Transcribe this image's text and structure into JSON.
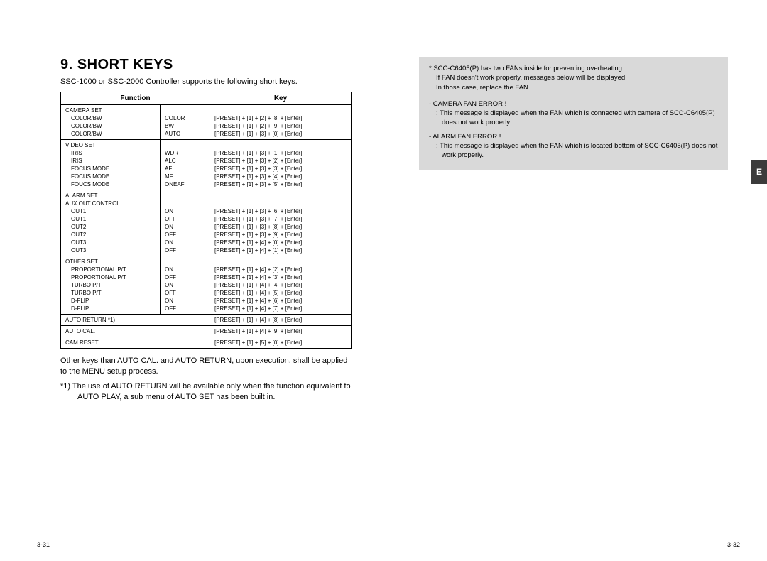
{
  "left": {
    "title": "9. SHORT KEYS",
    "intro": "SSC-1000 or SSC-2000 Controller supports the following short keys.",
    "headers": {
      "function": "Function",
      "key": "Key"
    },
    "sections": [
      {
        "label": "CAMERA SET",
        "rows": [
          {
            "name": "COLOR/BW",
            "val": "COLOR",
            "key": "[PRESET] + [1] + [2] + [8] + [Enter]"
          },
          {
            "name": "COLOR/BW",
            "val": "BW",
            "key": "[PRESET] + [1] + [2] + [9] + [Enter]"
          },
          {
            "name": "COLOR/BW",
            "val": "AUTO",
            "key": "[PRESET] + [1] + [3] + [0] + [Enter]"
          }
        ]
      },
      {
        "label": "VIDEO SET",
        "rows": [
          {
            "name": "IRIS",
            "val": "WDR",
            "key": "[PRESET] + [1] + [3] + [1] + [Enter]"
          },
          {
            "name": "IRIS",
            "val": "ALC",
            "key": "[PRESET] + [1] + [3] + [2] + [Enter]"
          },
          {
            "name": "FOCUS MODE",
            "val": "AF",
            "key": "[PRESET] + [1] + [3] + [3] + [Enter]"
          },
          {
            "name": "FOCUS MODE",
            "val": "MF",
            "key": "[PRESET] + [1] + [3] + [4] + [Enter]"
          },
          {
            "name": "FOUCS MODE",
            "val": "ONEAF",
            "key": "[PRESET] + [1] + [3] + [5] + [Enter]"
          }
        ]
      },
      {
        "label": "ALARM SET",
        "sublabel": "AUX OUT CONTROL",
        "rows": [
          {
            "name": "OUT1",
            "val": "ON",
            "key": "[PRESET] + [1] + [3] + [6] + [Enter]"
          },
          {
            "name": "OUT1",
            "val": "OFF",
            "key": "[PRESET] + [1] + [3] + [7] + [Enter]"
          },
          {
            "name": "OUT2",
            "val": "ON",
            "key": "[PRESET] + [1] + [3] + [8] + [Enter]"
          },
          {
            "name": "OUT2",
            "val": "OFF",
            "key": "[PRESET] + [1] + [3] + [9] + [Enter]"
          },
          {
            "name": "OUT3",
            "val": "ON",
            "key": "[PRESET] + [1] + [4] + [0] + [Enter]"
          },
          {
            "name": "OUT3",
            "val": "OFF",
            "key": "[PRESET] + [1] + [4] + [1] + [Enter]"
          }
        ]
      },
      {
        "label": "OTHER SET",
        "rows": [
          {
            "name": "PROPORTIONAL P/T",
            "val": "ON",
            "key": "[PRESET] + [1] + [4] + [2] + [Enter]"
          },
          {
            "name": "PROPORTIONAL P/T",
            "val": "OFF",
            "key": "[PRESET] + [1] + [4] + [3] + [Enter]"
          },
          {
            "name": "TURBO P/T",
            "val": "ON",
            "key": "[PRESET] + [1] + [4] + [4] + [Enter]"
          },
          {
            "name": "TURBO P/T",
            "val": "OFF",
            "key": "[PRESET] + [1] + [4] + [5] + [Enter]"
          },
          {
            "name": "D-FLIP",
            "val": "ON",
            "key": "[PRESET] + [1] + [4] + [6] + [Enter]"
          },
          {
            "name": "D-FLIP",
            "val": "OFF",
            "key": "[PRESET] + [1] + [4] + [7] + [Enter]"
          }
        ]
      }
    ],
    "simple_rows": [
      {
        "name": "AUTO RETURN *1)",
        "key": "[PRESET] + [1] + [4] + [8] + [Enter]"
      },
      {
        "name": "AUTO CAL.",
        "key": "[PRESET] + [1] + [4] + [9] + [Enter]"
      },
      {
        "name": "CAM RESET",
        "key": "[PRESET] + [1] + [5] + [0] + [Enter]"
      }
    ],
    "note1": "Other keys than AUTO CAL. and AUTO RETURN, upon execution, shall be applied to the MENU setup process.",
    "note2": "*1)  The use of AUTO RETURN will be available only when the function equivalent to AUTO PLAY, a sub menu of AUTO SET has been built in.",
    "page_num": "3-31"
  },
  "right": {
    "star_line1": "*   SCC-C6405(P) has two FANs inside for preventing overheating.",
    "star_line2": "If FAN doesn't work properly, messages below will be displayed.",
    "star_line3": "In those case, replace the FAN.",
    "err1_title": "-   CAMERA FAN ERROR !",
    "err1_desc": ": This message is displayed when the FAN which is connected with camera of SCC-C6405(P) does not work properly.",
    "err2_title": "-   ALARM FAN ERROR !",
    "err2_desc": ": This message is displayed when the FAN which is located bottom of SCC-C6405(P) does not work properly.",
    "tab": "E",
    "page_num": "3-32"
  },
  "style": {
    "bg": "#ffffff",
    "text": "#000000",
    "box_bg": "#d9d9d9",
    "tab_bg": "#3b3b3b",
    "tab_fg": "#ffffff",
    "border": "#000000",
    "body_font_pt": 11,
    "table_font_pt": 8,
    "title_font_pt": 20
  }
}
